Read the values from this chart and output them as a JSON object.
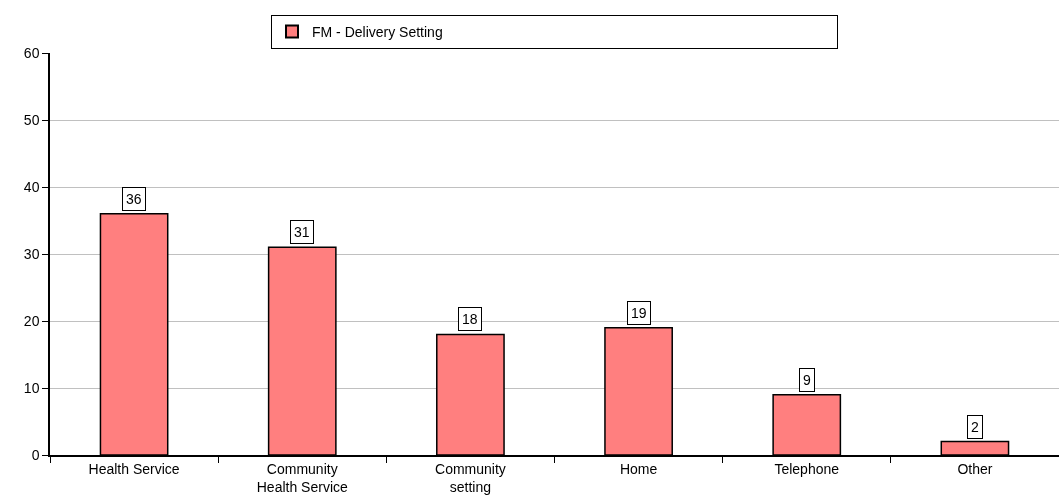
{
  "chart_data": {
    "type": "bar",
    "categories": [
      "Health Service",
      "Community\nHealth Service",
      "Community\nsetting",
      "Home",
      "Telephone",
      "Other"
    ],
    "series": [
      {
        "name": "FM - Delivery Setting",
        "color": "#ff7f7f",
        "values": [
          36,
          31,
          18,
          19,
          9,
          2
        ]
      }
    ],
    "ylim": [
      0,
      60
    ],
    "yticks": [
      0,
      10,
      20,
      30,
      40,
      50,
      60
    ],
    "grid": "y",
    "legend": "top",
    "data_labels": true
  }
}
